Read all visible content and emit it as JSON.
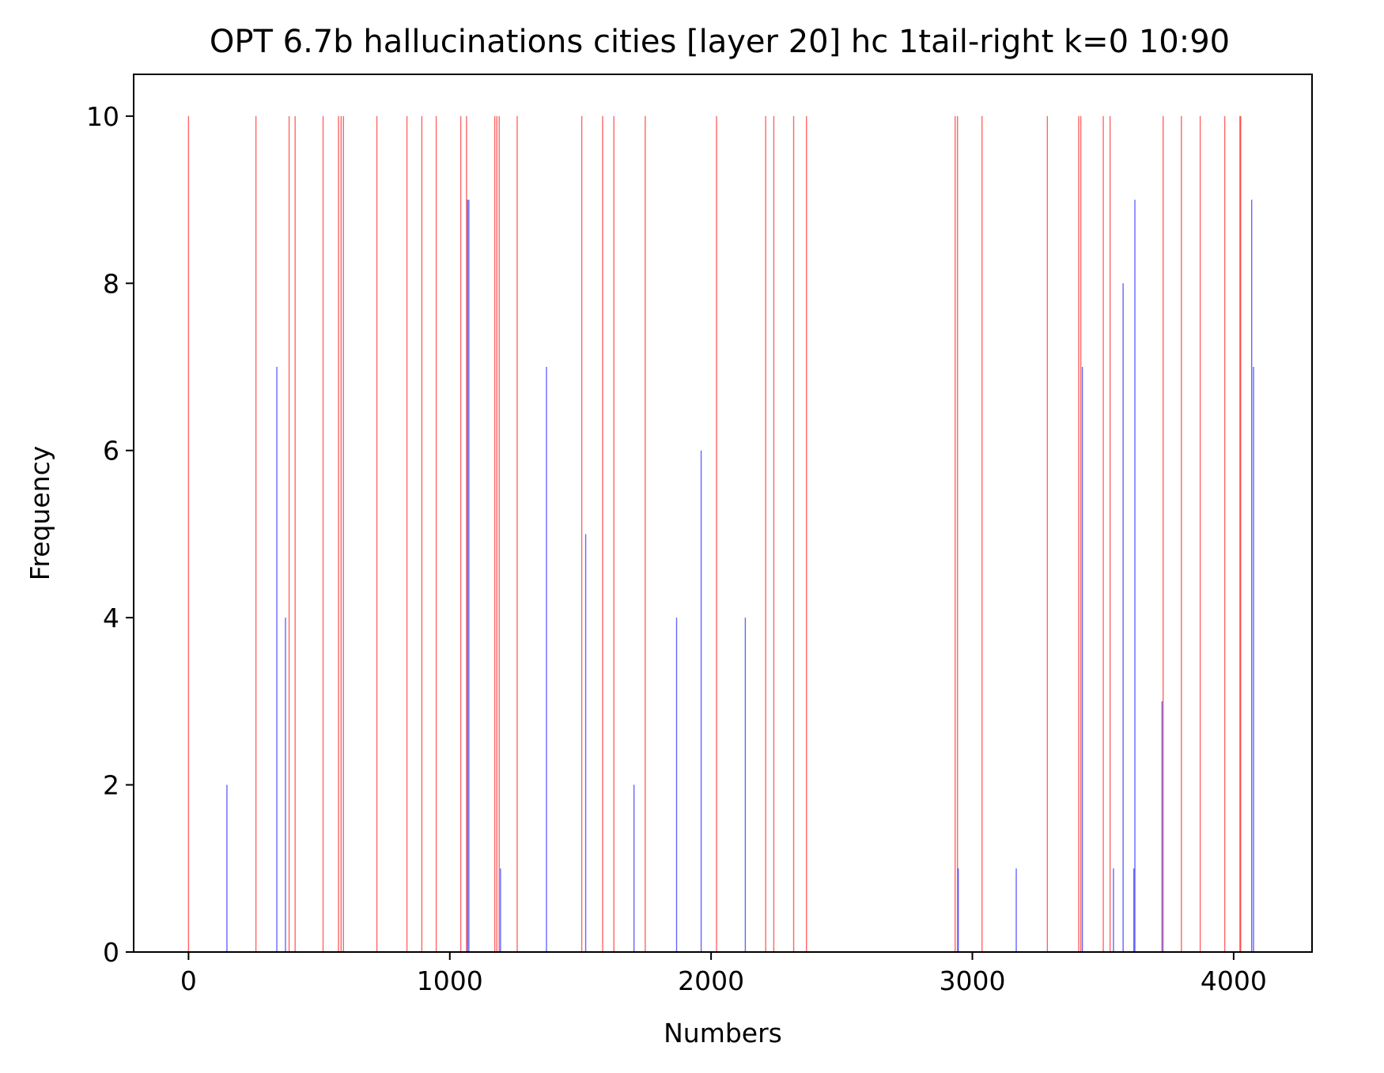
{
  "chart_data": {
    "type": "bar",
    "title": "OPT 6.7b hallucinations cities [layer 20] hc 1tail-right k=0 10:90",
    "xlabel": "Numbers",
    "ylabel": "Frequency",
    "xlim": [
      -210,
      4300
    ],
    "ylim": [
      0,
      10.5
    ],
    "xticks": [
      0,
      1000,
      2000,
      3000,
      4000
    ],
    "xtick_labels": [
      "0",
      "1000",
      "2000",
      "3000",
      "4000"
    ],
    "yticks": [
      0,
      2,
      4,
      6,
      8,
      10
    ],
    "ytick_labels": [
      "0",
      "2",
      "4",
      "6",
      "8",
      "10"
    ],
    "grid": false,
    "series": [
      {
        "color": "#ff0000",
        "x": [
          0,
          258,
          385,
          408,
          515,
          574,
          584,
          593,
          721,
          836,
          893,
          948,
          1042,
          1064,
          1172,
          1180,
          1189,
          1258,
          1505,
          1585,
          1628,
          1748,
          2021,
          2209,
          2240,
          2316,
          2365,
          2934,
          2943,
          3037,
          3287,
          3407,
          3415,
          3501,
          3527,
          3730,
          3800,
          3872,
          3966,
          4024,
          4027
        ],
        "values": [
          10,
          10,
          10,
          10,
          10,
          10,
          10,
          10,
          10,
          10,
          10,
          10,
          10,
          10,
          10,
          10,
          10,
          10,
          10,
          10,
          10,
          10,
          10,
          10,
          10,
          10,
          10,
          10,
          10,
          10,
          10,
          10,
          10,
          10,
          10,
          10,
          10,
          10,
          10,
          10,
          10
        ]
      },
      {
        "color": "#0000ff",
        "x": [
          147,
          338,
          371,
          1068,
          1073,
          1194,
          1370,
          1520,
          1705,
          1868,
          1962,
          2131,
          2946,
          3168,
          3421,
          3540,
          3577,
          3618,
          3622,
          3726,
          4069,
          4076
        ],
        "values": [
          2,
          7,
          4,
          9,
          9,
          1,
          7,
          5,
          2,
          4,
          6,
          4,
          1,
          1,
          7,
          1,
          8,
          1,
          9,
          3,
          9,
          7
        ]
      }
    ]
  }
}
